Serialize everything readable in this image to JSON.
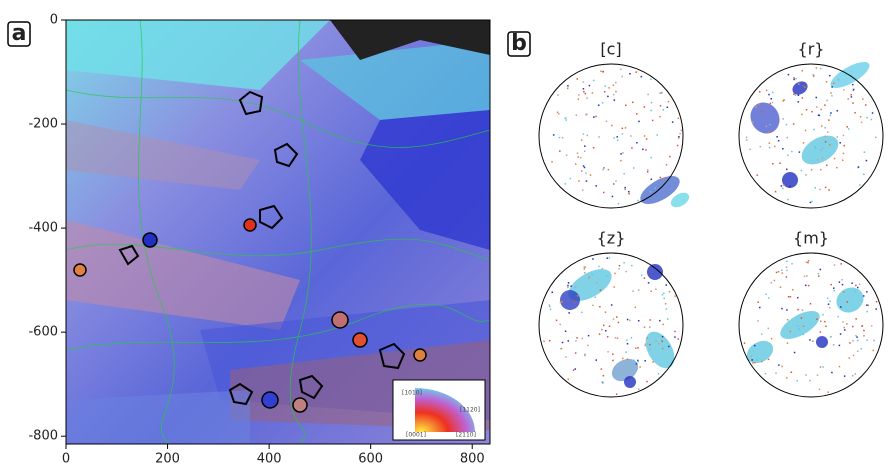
{
  "chart_data": [
    {
      "type": "map",
      "panel_label": "a",
      "xlim": [
        0,
        835
      ],
      "ylim": [
        -815,
        0
      ],
      "xticks": [
        0,
        200,
        400,
        600,
        800
      ],
      "yticks": [
        0,
        -200,
        -400,
        -600,
        -800
      ],
      "inset_labels": [
        "[0001]",
        "[2110]",
        "[1010]",
        "[1120]"
      ]
    },
    {
      "type": "pole_figures",
      "panel_label": "b",
      "titles": [
        "[c]",
        "{r}",
        "{z}",
        "{m}"
      ]
    }
  ]
}
